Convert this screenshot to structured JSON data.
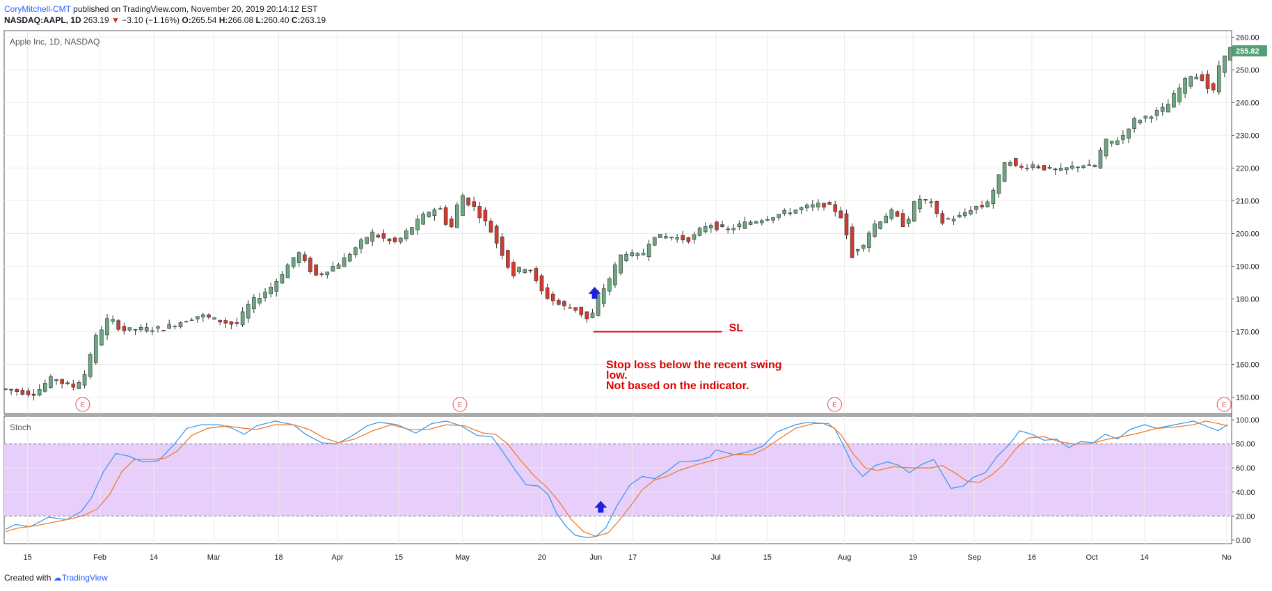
{
  "header": {
    "author": "CoryMitchell-CMT",
    "published": "published on TradingView.com, November 20, 2019 20:14:12 EST",
    "symbol": "NASDAQ:AAPL, 1D",
    "last": "263.19",
    "change": "−3.10 (−1.16%)",
    "open_label": "O:",
    "open": "265.54",
    "high_label": "H:",
    "high": "266.08",
    "low_label": "L:",
    "low": "260.40",
    "close_label": "C:",
    "close": "263.19"
  },
  "footer": {
    "prefix": "Created with",
    "brand": "TradingView"
  },
  "colors": {
    "up": "#6aa87f",
    "down": "#d33b30",
    "stochK": "#3d9ae8",
    "stochD": "#f07c2a",
    "band": "#e8cffb",
    "annotation": "#e00000",
    "arrow": "#1f1fe0"
  },
  "chart_data": [
    {
      "type": "candlestick",
      "title": "Apple Inc, 1D, NASDAQ",
      "ylim": [
        145,
        262
      ],
      "yticks": [
        150,
        160,
        170,
        180,
        190,
        200,
        210,
        220,
        230,
        240,
        250,
        260
      ],
      "ytick_labels": [
        "150.00",
        "160.00",
        "170.00",
        "180.00",
        "190.00",
        "200.00",
        "210.00",
        "220.00",
        "230.00",
        "240.00",
        "250.00",
        "260.00"
      ],
      "last_price_label": "255.82",
      "last_price": 255.82,
      "earnings_marker": "E",
      "earnings_at": [
        0.063,
        0.371,
        0.677,
        0.995
      ],
      "xticks": [
        {
          "label": "15",
          "pos": 0.018
        },
        {
          "label": "Feb",
          "pos": 0.077
        },
        {
          "label": "14",
          "pos": 0.121
        },
        {
          "label": "Mar",
          "pos": 0.17
        },
        {
          "label": "18",
          "pos": 0.223
        },
        {
          "label": "Apr",
          "pos": 0.271
        },
        {
          "label": "15",
          "pos": 0.321
        },
        {
          "label": "May",
          "pos": 0.373
        },
        {
          "label": "20",
          "pos": 0.438
        },
        {
          "label": "Jun",
          "pos": 0.482
        },
        {
          "label": "17",
          "pos": 0.512
        },
        {
          "label": "Jul",
          "pos": 0.58
        },
        {
          "label": "15",
          "pos": 0.622
        },
        {
          "label": "Aug",
          "pos": 0.685
        },
        {
          "label": "19",
          "pos": 0.741
        },
        {
          "label": "Sep",
          "pos": 0.791
        },
        {
          "label": "16",
          "pos": 0.838
        },
        {
          "label": "Oct",
          "pos": 0.887
        },
        {
          "label": "14",
          "pos": 0.93
        },
        {
          "label": "No",
          "pos": 0.997
        }
      ],
      "price_path": [
        [
          0.0,
          152.5
        ],
        [
          0.025,
          151
        ],
        [
          0.04,
          156
        ],
        [
          0.055,
          153
        ],
        [
          0.066,
          156
        ],
        [
          0.072,
          165
        ],
        [
          0.085,
          174
        ],
        [
          0.098,
          170.5
        ],
        [
          0.13,
          171
        ],
        [
          0.16,
          175
        ],
        [
          0.19,
          172
        ],
        [
          0.2,
          178
        ],
        [
          0.22,
          184
        ],
        [
          0.24,
          194
        ],
        [
          0.255,
          187
        ],
        [
          0.275,
          191
        ],
        [
          0.3,
          200
        ],
        [
          0.32,
          197
        ],
        [
          0.345,
          206
        ],
        [
          0.355,
          208
        ],
        [
          0.365,
          201
        ],
        [
          0.372,
          211
        ],
        [
          0.382,
          209
        ],
        [
          0.395,
          203
        ],
        [
          0.405,
          196
        ],
        [
          0.415,
          188
        ],
        [
          0.428,
          190
        ],
        [
          0.44,
          182
        ],
        [
          0.455,
          178
        ],
        [
          0.468,
          177
        ],
        [
          0.478,
          173
        ],
        [
          0.484,
          179
        ],
        [
          0.495,
          186
        ],
        [
          0.505,
          194
        ],
        [
          0.52,
          193
        ],
        [
          0.53,
          199
        ],
        [
          0.545,
          199
        ],
        [
          0.56,
          198
        ],
        [
          0.575,
          203
        ],
        [
          0.59,
          201
        ],
        [
          0.605,
          203
        ],
        [
          0.625,
          205
        ],
        [
          0.645,
          207
        ],
        [
          0.655,
          208
        ],
        [
          0.67,
          209
        ],
        [
          0.685,
          206
        ],
        [
          0.69,
          194
        ],
        [
          0.7,
          196
        ],
        [
          0.71,
          202
        ],
        [
          0.725,
          207
        ],
        [
          0.735,
          202
        ],
        [
          0.745,
          210
        ],
        [
          0.755,
          210
        ],
        [
          0.765,
          204
        ],
        [
          0.78,
          205
        ],
        [
          0.792,
          208
        ],
        [
          0.8,
          208
        ],
        [
          0.81,
          214
        ],
        [
          0.818,
          223
        ],
        [
          0.828,
          220
        ],
        [
          0.84,
          221
        ],
        [
          0.86,
          219
        ],
        [
          0.88,
          221
        ],
        [
          0.89,
          220
        ],
        [
          0.898,
          227
        ],
        [
          0.912,
          229
        ],
        [
          0.922,
          234
        ],
        [
          0.935,
          236
        ],
        [
          0.948,
          238
        ],
        [
          0.958,
          243
        ],
        [
          0.968,
          248
        ],
        [
          0.98,
          248
        ],
        [
          0.985,
          241
        ],
        [
          0.991,
          249
        ],
        [
          0.998,
          255.82
        ]
      ],
      "annotations": [
        {
          "text": "SL",
          "price": 170.5
        },
        {
          "text_lines": [
            "Stop loss below the recent swing",
            "low.",
            "Not based on the indicator."
          ]
        }
      ],
      "stop_loss_line": {
        "price": 170,
        "from": 0.48,
        "to": 0.585
      },
      "buy_arrow": {
        "pos": 0.481,
        "price": 182
      }
    },
    {
      "type": "line",
      "title": "Stoch",
      "ylim": [
        -3,
        103
      ],
      "yticks": [
        0,
        20,
        40,
        60,
        80,
        100
      ],
      "ytick_labels": [
        "0.00",
        "20.00",
        "40.00",
        "60.00",
        "80.00",
        "100.00"
      ],
      "band": [
        20,
        80
      ],
      "buy_arrow": {
        "pos": 0.486,
        "value": 28
      },
      "series": [
        {
          "key": "stochK",
          "points": [
            [
              0.0,
              9
            ],
            [
              0.008,
              13
            ],
            [
              0.02,
              11
            ],
            [
              0.035,
              19
            ],
            [
              0.05,
              17
            ],
            [
              0.062,
              24
            ],
            [
              0.07,
              35
            ],
            [
              0.08,
              57
            ],
            [
              0.09,
              72
            ],
            [
              0.1,
              70
            ],
            [
              0.112,
              65
            ],
            [
              0.125,
              66
            ],
            [
              0.138,
              80
            ],
            [
              0.148,
              93
            ],
            [
              0.16,
              96
            ],
            [
              0.175,
              96
            ],
            [
              0.185,
              93
            ],
            [
              0.195,
              88
            ],
            [
              0.205,
              95
            ],
            [
              0.22,
              99
            ],
            [
              0.235,
              96
            ],
            [
              0.245,
              88
            ],
            [
              0.258,
              81
            ],
            [
              0.27,
              80
            ],
            [
              0.282,
              86
            ],
            [
              0.295,
              95
            ],
            [
              0.305,
              98
            ],
            [
              0.32,
              96
            ],
            [
              0.335,
              89
            ],
            [
              0.348,
              97
            ],
            [
              0.36,
              99
            ],
            [
              0.372,
              95
            ],
            [
              0.385,
              87
            ],
            [
              0.397,
              86
            ],
            [
              0.405,
              75
            ],
            [
              0.415,
              60
            ],
            [
              0.425,
              46
            ],
            [
              0.435,
              45
            ],
            [
              0.443,
              38
            ],
            [
              0.45,
              22
            ],
            [
              0.458,
              11
            ],
            [
              0.465,
              4
            ],
            [
              0.475,
              2
            ],
            [
              0.482,
              3
            ],
            [
              0.49,
              10
            ],
            [
              0.5,
              30
            ],
            [
              0.51,
              46
            ],
            [
              0.52,
              53
            ],
            [
              0.53,
              51
            ],
            [
              0.54,
              57
            ],
            [
              0.55,
              65
            ],
            [
              0.565,
              66
            ],
            [
              0.575,
              69
            ],
            [
              0.58,
              75
            ],
            [
              0.595,
              71
            ],
            [
              0.605,
              73
            ],
            [
              0.618,
              78
            ],
            [
              0.63,
              90
            ],
            [
              0.645,
              96
            ],
            [
              0.655,
              98
            ],
            [
              0.668,
              97
            ],
            [
              0.677,
              93
            ],
            [
              0.685,
              77
            ],
            [
              0.692,
              62
            ],
            [
              0.7,
              53
            ],
            [
              0.71,
              62
            ],
            [
              0.72,
              65
            ],
            [
              0.73,
              62
            ],
            [
              0.738,
              56
            ],
            [
              0.748,
              63
            ],
            [
              0.758,
              67
            ],
            [
              0.765,
              55
            ],
            [
              0.772,
              43
            ],
            [
              0.782,
              45
            ],
            [
              0.79,
              52
            ],
            [
              0.8,
              56
            ],
            [
              0.81,
              70
            ],
            [
              0.82,
              80
            ],
            [
              0.828,
              91
            ],
            [
              0.838,
              88
            ],
            [
              0.848,
              83
            ],
            [
              0.858,
              84
            ],
            [
              0.868,
              77
            ],
            [
              0.878,
              82
            ],
            [
              0.888,
              81
            ],
            [
              0.898,
              88
            ],
            [
              0.908,
              84
            ],
            [
              0.918,
              92
            ],
            [
              0.93,
              96
            ],
            [
              0.94,
              93
            ],
            [
              0.95,
              95
            ],
            [
              0.96,
              97
            ],
            [
              0.97,
              99
            ],
            [
              0.98,
              95
            ],
            [
              0.99,
              91
            ],
            [
              0.998,
              96
            ]
          ]
        },
        {
          "key": "stochD",
          "points": [
            [
              0.0,
              7
            ],
            [
              0.01,
              10
            ],
            [
              0.025,
              12
            ],
            [
              0.04,
              15
            ],
            [
              0.055,
              18
            ],
            [
              0.065,
              21
            ],
            [
              0.075,
              26
            ],
            [
              0.085,
              38
            ],
            [
              0.095,
              57
            ],
            [
              0.105,
              67
            ],
            [
              0.118,
              67
            ],
            [
              0.13,
              68
            ],
            [
              0.14,
              74
            ],
            [
              0.152,
              87
            ],
            [
              0.165,
              93
            ],
            [
              0.18,
              95
            ],
            [
              0.195,
              93
            ],
            [
              0.205,
              92
            ],
            [
              0.22,
              96
            ],
            [
              0.235,
              96
            ],
            [
              0.248,
              92
            ],
            [
              0.26,
              85
            ],
            [
              0.272,
              81
            ],
            [
              0.285,
              84
            ],
            [
              0.3,
              91
            ],
            [
              0.315,
              96
            ],
            [
              0.33,
              92
            ],
            [
              0.345,
              92
            ],
            [
              0.36,
              96
            ],
            [
              0.375,
              95
            ],
            [
              0.39,
              89
            ],
            [
              0.4,
              88
            ],
            [
              0.41,
              80
            ],
            [
              0.42,
              67
            ],
            [
              0.432,
              53
            ],
            [
              0.442,
              44
            ],
            [
              0.452,
              32
            ],
            [
              0.462,
              17
            ],
            [
              0.472,
              7
            ],
            [
              0.482,
              3
            ],
            [
              0.492,
              6
            ],
            [
              0.5,
              15
            ],
            [
              0.51,
              28
            ],
            [
              0.52,
              42
            ],
            [
              0.53,
              50
            ],
            [
              0.54,
              53
            ],
            [
              0.55,
              58
            ],
            [
              0.565,
              63
            ],
            [
              0.58,
              67
            ],
            [
              0.595,
              71
            ],
            [
              0.61,
              71
            ],
            [
              0.62,
              76
            ],
            [
              0.63,
              83
            ],
            [
              0.645,
              93
            ],
            [
              0.66,
              97
            ],
            [
              0.672,
              97
            ],
            [
              0.682,
              88
            ],
            [
              0.692,
              72
            ],
            [
              0.702,
              60
            ],
            [
              0.712,
              58
            ],
            [
              0.725,
              61
            ],
            [
              0.74,
              60
            ],
            [
              0.755,
              60
            ],
            [
              0.765,
              62
            ],
            [
              0.775,
              56
            ],
            [
              0.785,
              49
            ],
            [
              0.795,
              48
            ],
            [
              0.805,
              54
            ],
            [
              0.815,
              63
            ],
            [
              0.825,
              76
            ],
            [
              0.835,
              85
            ],
            [
              0.848,
              86
            ],
            [
              0.86,
              82
            ],
            [
              0.872,
              80
            ],
            [
              0.885,
              80
            ],
            [
              0.9,
              84
            ],
            [
              0.912,
              86
            ],
            [
              0.925,
              89
            ],
            [
              0.94,
              93
            ],
            [
              0.955,
              94
            ],
            [
              0.97,
              96
            ],
            [
              0.98,
              99
            ],
            [
              0.99,
              97
            ],
            [
              0.998,
              95
            ]
          ]
        }
      ]
    }
  ]
}
